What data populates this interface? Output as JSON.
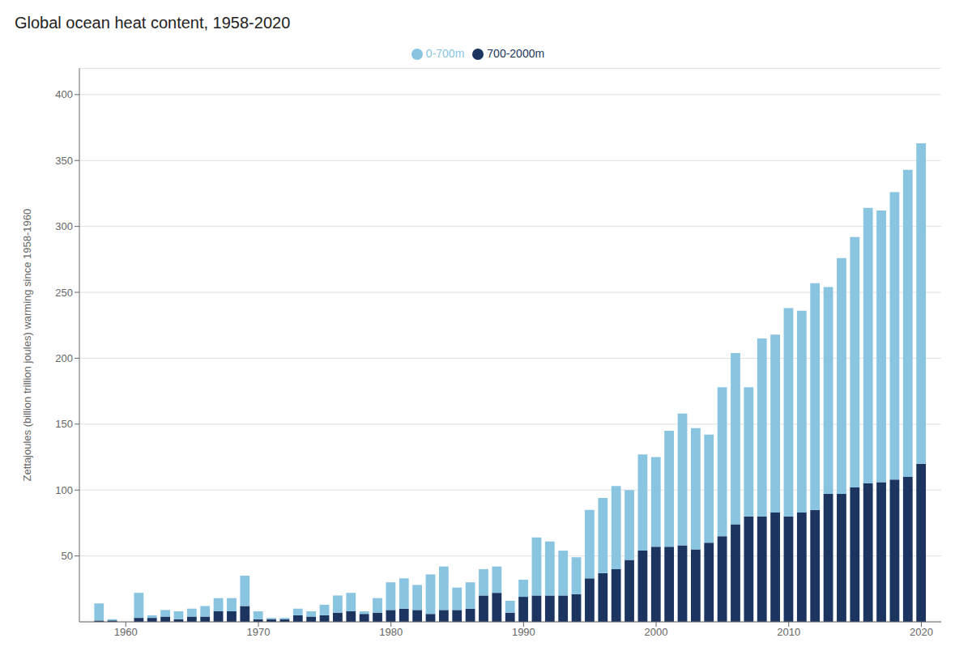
{
  "chart_data": {
    "type": "bar",
    "title": "Global ocean heat content, 1958-2020",
    "ylabel": "Zettajoules (billion trillion joules) warming since 1958-1960",
    "x": [
      1958,
      1959,
      1960,
      1961,
      1962,
      1963,
      1964,
      1965,
      1966,
      1967,
      1968,
      1969,
      1970,
      1971,
      1972,
      1973,
      1974,
      1975,
      1976,
      1977,
      1978,
      1979,
      1980,
      1981,
      1982,
      1983,
      1984,
      1985,
      1986,
      1987,
      1988,
      1989,
      1990,
      1991,
      1992,
      1993,
      1994,
      1995,
      1996,
      1997,
      1998,
      1999,
      2000,
      2001,
      2002,
      2003,
      2004,
      2005,
      2006,
      2007,
      2008,
      2009,
      2010,
      2011,
      2012,
      2013,
      2014,
      2015,
      2016,
      2017,
      2018,
      2019,
      2020
    ],
    "series": [
      {
        "name": "700-2000m",
        "color": "#1B3560",
        "values": [
          1,
          1,
          0,
          3,
          3,
          4,
          2,
          4,
          4,
          8,
          8,
          12,
          2,
          2,
          2,
          5,
          4,
          5,
          7,
          8,
          6,
          7,
          9,
          10,
          9,
          6,
          9,
          9,
          10,
          20,
          22,
          7,
          19,
          20,
          20,
          20,
          21,
          33,
          37,
          40,
          47,
          54,
          57,
          57,
          58,
          55,
          60,
          65,
          74,
          80,
          80,
          83,
          80,
          83,
          85,
          97,
          97,
          102,
          105,
          106,
          108,
          110,
          120
        ]
      },
      {
        "name": "0-700m",
        "color": "#89C4E1",
        "values": [
          13,
          1,
          0,
          19,
          2,
          5,
          6,
          6,
          8,
          10,
          10,
          23,
          6,
          1,
          1,
          5,
          4,
          8,
          13,
          14,
          2,
          11,
          21,
          23,
          19,
          30,
          33,
          17,
          20,
          20,
          20,
          9,
          13,
          44,
          41,
          34,
          28,
          52,
          57,
          63,
          53,
          73,
          68,
          88,
          100,
          92,
          82,
          113,
          130,
          98,
          135,
          135,
          158,
          153,
          172,
          157,
          179,
          190,
          209,
          206,
          218,
          233,
          243
        ]
      }
    ],
    "stacked": true,
    "xlim": [
      1956.5,
      2021.5
    ],
    "xticks": [
      1960,
      1970,
      1980,
      1990,
      2000,
      2010,
      2020
    ],
    "ylim": [
      0,
      420
    ],
    "yticks": [
      50,
      100,
      150,
      200,
      250,
      300,
      350,
      400
    ],
    "grid": true,
    "legend": "top"
  }
}
